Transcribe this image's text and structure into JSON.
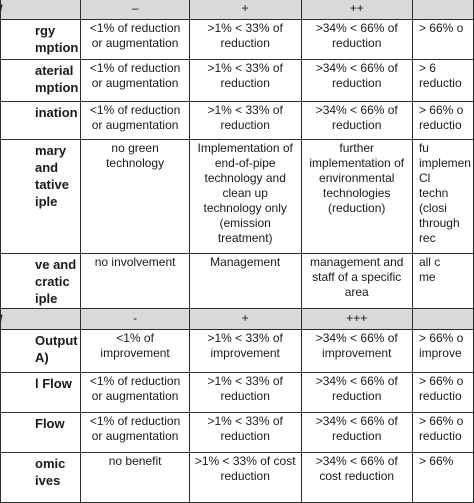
{
  "rows": [
    {
      "type": "head",
      "label": "Level",
      "cells": [
        "–",
        "+",
        "++",
        ""
      ]
    },
    {
      "type": "row",
      "label": "rgy\nmption",
      "cells": [
        "<1% of reduction or augmentation",
        ">1% < 33% of reduction",
        ">34% < 66% of reduction",
        "> 66% o"
      ]
    },
    {
      "type": "row",
      "label": "aterial\nmption",
      "cells": [
        "<1% of reduction or augmentation",
        ">1% < 33% of reduction",
        ">34% < 66% of reduction",
        "> 6\nreductio"
      ]
    },
    {
      "type": "row",
      "label": "ination",
      "cells": [
        "<1% of reduction or augmentation",
        ">1% < 33% of reduction",
        ">34% < 66% of reduction",
        "> 66% o\nreductio"
      ]
    },
    {
      "type": "row",
      "label": "mary and\ntative\niple",
      "cells": [
        "no green technology",
        "Implementation of end-of-pipe technology and clean up technology only (emission treatment)",
        "further implementation of environmental technologies (reduction)",
        "fu\nimplemen\nCl\ntechn\n(closi\nthrough\nrec"
      ]
    },
    {
      "type": "row",
      "label": "ve and\ncratic\niple",
      "cells": [
        "no involvement",
        "Management",
        "management and staff of a specific area",
        "all c\nme"
      ]
    },
    {
      "type": "head",
      "label": "Level",
      "cells": [
        "-",
        "+",
        "+++",
        ""
      ]
    },
    {
      "type": "row",
      "label": "Output\nA)",
      "cells": [
        "<1% of improvement",
        ">1% < 33% of improvement",
        ">34% < 66% of improvement",
        "> 66% o\nimprove"
      ]
    },
    {
      "type": "row",
      "label": "l Flow",
      "cells": [
        "<1% of reduction or augmentation",
        ">1% < 33% of reduction",
        ">34% < 66% of reduction",
        "> 66% o\nreductio"
      ]
    },
    {
      "type": "row",
      "label": "Flow",
      "cells": [
        "<1% of reduction or augmentation",
        ">1% < 33% of reduction",
        ">34% < 66% of reduction",
        "> 66% o\nreductio"
      ]
    },
    {
      "type": "row",
      "label": "omic\nives",
      "cells": [
        "no benefit",
        ">1% < 33% of cost reduction",
        ">34% < 66% of cost reduction",
        "> 66%"
      ]
    }
  ]
}
